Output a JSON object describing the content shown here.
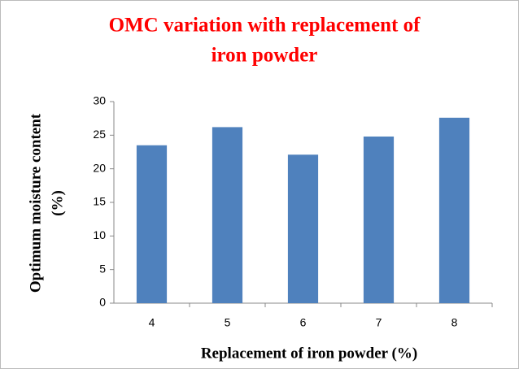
{
  "chart_data": {
    "type": "bar",
    "title": [
      "OMC variation with replacement of",
      "iron powder"
    ],
    "x_label": "Replacement of iron powder (%)",
    "y_label": [
      "Optimum moisture content",
      "(%)"
    ],
    "categories": [
      "4",
      "5",
      "6",
      "7",
      "8"
    ],
    "values": [
      23.5,
      26.2,
      22.1,
      24.8,
      27.6
    ],
    "color": "#4f81bd",
    "ylim": [
      0,
      30
    ],
    "yticks": [
      0,
      5,
      10,
      15,
      20,
      25,
      30
    ],
    "grid": false
  }
}
